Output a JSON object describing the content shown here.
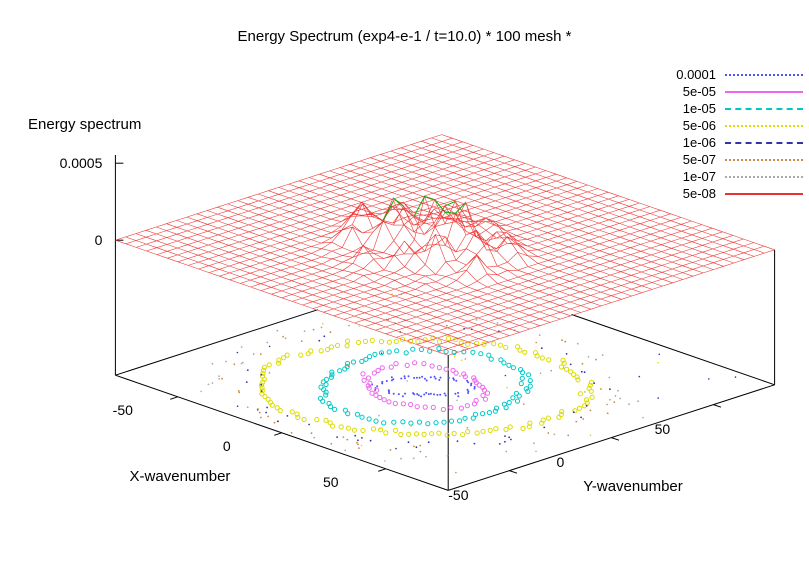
{
  "chart_data": {
    "type": "surface3d_with_contour_base",
    "title": "Energy Spectrum (exp4-e-1 / t=10.0) * 100 mesh *",
    "xlabel": "X-wavenumber",
    "ylabel": "Y-wavenumber",
    "zlabel": "Energy spectrum",
    "x_range": [
      -80,
      80
    ],
    "y_range": [
      -80,
      80
    ],
    "z_range": [
      0,
      0.0005
    ],
    "x_tick_labels": [
      "-50",
      "0",
      "50"
    ],
    "x_tick_values": [
      -50,
      0,
      50
    ],
    "y_tick_labels": [
      "-50",
      "0",
      "50"
    ],
    "y_tick_values": [
      -50,
      0,
      50
    ],
    "z_tick_labels": [
      "0.0005",
      "0"
    ],
    "z_tick_values": [
      0.0005,
      0
    ],
    "mesh": {
      "step": 5,
      "color": "#ee3a3a",
      "highlight_color": "#00b400",
      "highlight_threshold": 0.00019
    },
    "spectrum_center": [
      0,
      -10
    ],
    "peaks": [
      {
        "x": 0,
        "y": -8,
        "amp": 0.0004,
        "sigma": 4
      },
      {
        "x": 10,
        "y": -2,
        "amp": 0.00034,
        "sigma": 4
      },
      {
        "x": -10,
        "y": -16,
        "amp": 0.0003,
        "sigma": 4
      },
      {
        "x": -18,
        "y": -4,
        "amp": 0.00028,
        "sigma": 3.5
      },
      {
        "x": 14,
        "y": -18,
        "amp": 0.00026,
        "sigma": 3.5
      },
      {
        "x": -2,
        "y": 6,
        "amp": 0.0003,
        "sigma": 3.5
      },
      {
        "x": 22,
        "y": -6,
        "amp": 0.00022,
        "sigma": 3.5
      },
      {
        "x": -26,
        "y": -14,
        "amp": 0.00022,
        "sigma": 3.5
      },
      {
        "x": -12,
        "y": 10,
        "amp": 0.00018,
        "sigma": 3
      },
      {
        "x": 6,
        "y": -26,
        "amp": 0.00017,
        "sigma": 3
      },
      {
        "x": 26,
        "y": 6,
        "amp": 0.00016,
        "sigma": 3
      },
      {
        "x": -34,
        "y": -6,
        "amp": 0.00015,
        "sigma": 3
      },
      {
        "x": -22,
        "y": -24,
        "amp": 0.00014,
        "sigma": 3
      },
      {
        "x": 16,
        "y": 12,
        "amp": 0.00013,
        "sigma": 3
      },
      {
        "x": -4,
        "y": -34,
        "amp": 0.00012,
        "sigma": 3
      },
      {
        "x": 30,
        "y": -16,
        "amp": 0.00013,
        "sigma": 3
      },
      {
        "x": -30,
        "y": 8,
        "amp": 0.00012,
        "sigma": 3
      },
      {
        "x": 2,
        "y": 18,
        "amp": 0.00012,
        "sigma": 3
      }
    ],
    "ripple": {
      "amp": 1.2e-05,
      "inner": 8,
      "outer": 36,
      "center": [
        0,
        -10
      ]
    },
    "legend": [
      {
        "label": "0.0001",
        "color": "#5050ff",
        "style": "dotted"
      },
      {
        "label": "5e-05",
        "color": "#ee66ee",
        "style": "solid"
      },
      {
        "label": "1e-05",
        "color": "#00c8c8",
        "style": "dashed"
      },
      {
        "label": "5e-06",
        "color": "#dcdc00",
        "style": "dotted"
      },
      {
        "label": "1e-06",
        "color": "#3333aa",
        "style": "dashed"
      },
      {
        "label": "5e-07",
        "color": "#cc8844",
        "style": "dotted"
      },
      {
        "label": "1e-07",
        "color": "#aaaaaa",
        "style": "dotted"
      },
      {
        "label": "5e-08",
        "color": "#ee3030",
        "style": "solid"
      }
    ],
    "contour_rings": [
      {
        "level": "0.0001",
        "color": "#5050ff",
        "radius": 12,
        "marker": "dot",
        "wobble": 4
      },
      {
        "level": "5e-05",
        "color": "#ee66ee",
        "radius": 21,
        "marker": "circle",
        "wobble": 3
      },
      {
        "level": "1e-05",
        "color": "#00c8c8",
        "radius": 36,
        "marker": "circle",
        "wobble": 3
      },
      {
        "level": "5e-06",
        "color": "#dcdc00",
        "radius": 52,
        "marker": "circle",
        "wobble": 4
      }
    ],
    "contour_scatter": [
      {
        "level": "1e-06",
        "color": "#3333aa",
        "r_min": 56,
        "r_max": 64,
        "count": 42
      },
      {
        "level": "5e-07",
        "color": "#cc8844",
        "r_min": 60,
        "r_max": 70,
        "count": 42
      },
      {
        "level": "1e-07",
        "color": "#aaaaaa",
        "r_min": 64,
        "r_max": 76,
        "count": 42
      }
    ]
  }
}
